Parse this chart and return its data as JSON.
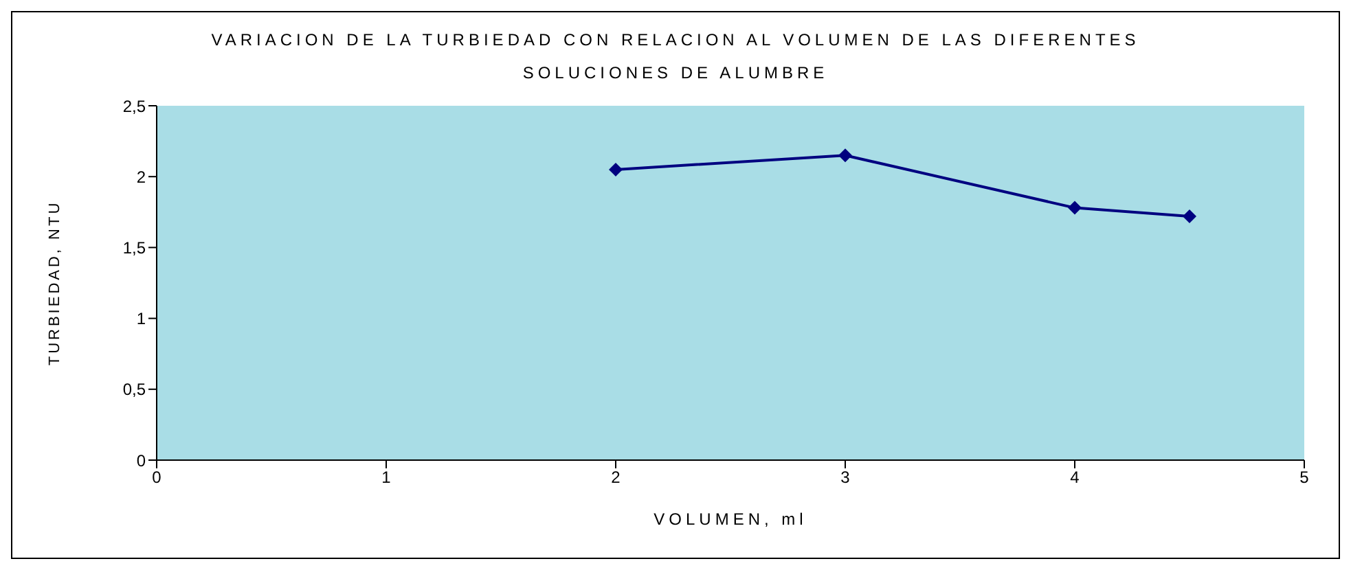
{
  "chart_data": {
    "type": "line",
    "title": "VARIACION DE LA TURBIEDAD CON RELACION AL VOLUMEN DE LAS DIFERENTES SOLUCIONES DE ALUMBRE",
    "xlabel": "VOLUMEN, ml",
    "ylabel": "TURBIEDAD, NTU",
    "x": [
      2,
      3,
      4,
      4.5
    ],
    "series": [
      {
        "color": "#000080",
        "values": [
          2.05,
          2.15,
          1.78,
          1.72
        ]
      }
    ],
    "xlim": [
      0,
      5
    ],
    "xticks": [
      0,
      1,
      2,
      3,
      4,
      5
    ],
    "ylim": [
      0,
      2.5
    ],
    "yticks": [
      0,
      {
        "value": 0.5,
        "label": "0,5"
      },
      1,
      {
        "value": 1.5,
        "label": "1,5"
      },
      2,
      {
        "value": 2.5,
        "label": "2,5"
      }
    ],
    "grid": false,
    "marker": "diamond",
    "line_style": "solid"
  }
}
